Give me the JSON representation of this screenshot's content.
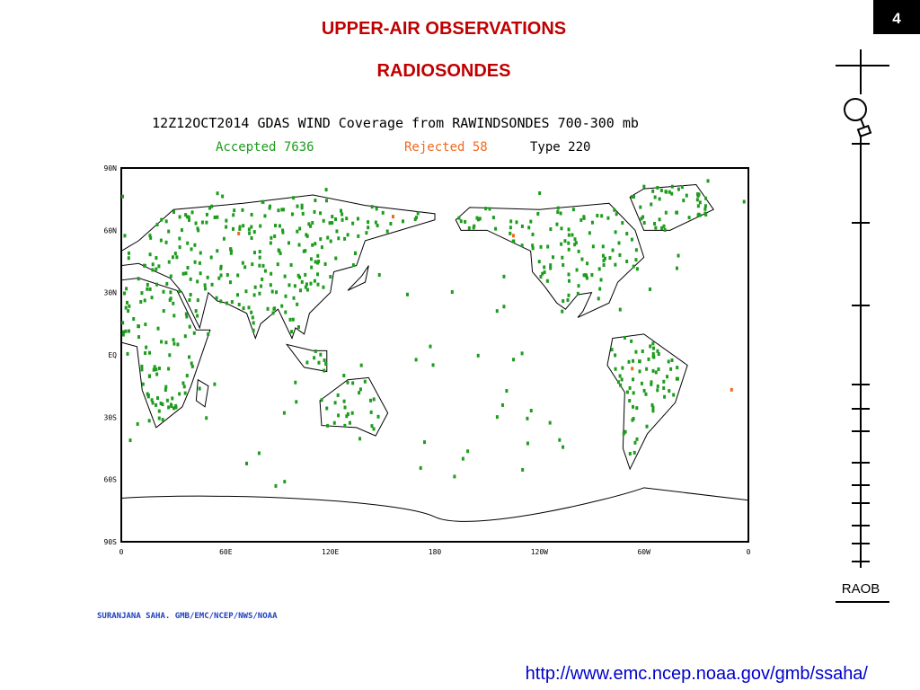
{
  "slide_number": "4",
  "title": "UPPER-AIR OBSERVATIONS",
  "subtitle": "RADIOSONDES",
  "map": {
    "title": "12Z12OCT2014 GDAS WIND Coverage from RAWINDSONDES 700-300 mb",
    "legend": {
      "accepted": "Accepted 7636",
      "rejected": "Rejected 58",
      "type": "Type 220"
    },
    "y_labels": [
      "90N",
      "60N",
      "30N",
      "EQ",
      "30S",
      "60S",
      "90S"
    ],
    "x_labels": [
      "0",
      "60E",
      "120E",
      "180",
      "120W",
      "60W",
      "0"
    ]
  },
  "credit": "SURANJANA SAHA. GMB/EMC/NCEP/NWS/NOAA",
  "raob_label": "RAOB",
  "url": "http://www.emc.ncep.noaa.gov/gmb/ssaha/"
}
